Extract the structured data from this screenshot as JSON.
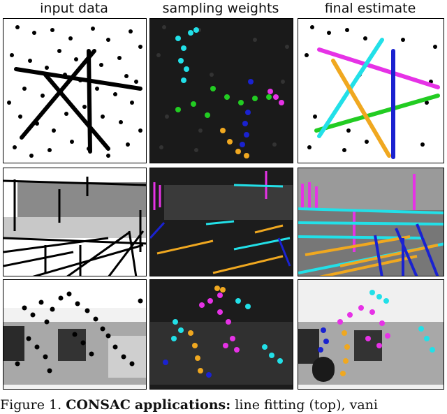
{
  "columns": {
    "input": "input data",
    "weights": "sampling weights",
    "final": "final estimate"
  },
  "caption": {
    "prefix": "Figure 1.",
    "name": "CONSAC",
    "bold_rest": "applications:",
    "rest": "line fitting (top), vani"
  },
  "colors": {
    "background_dark": "#1a1a1a",
    "point": "#000000",
    "cyan": "#22e0e8",
    "magenta": "#e632e6",
    "blue": "#1a22d0",
    "orange": "#f0a820",
    "green": "#22cc22"
  }
}
